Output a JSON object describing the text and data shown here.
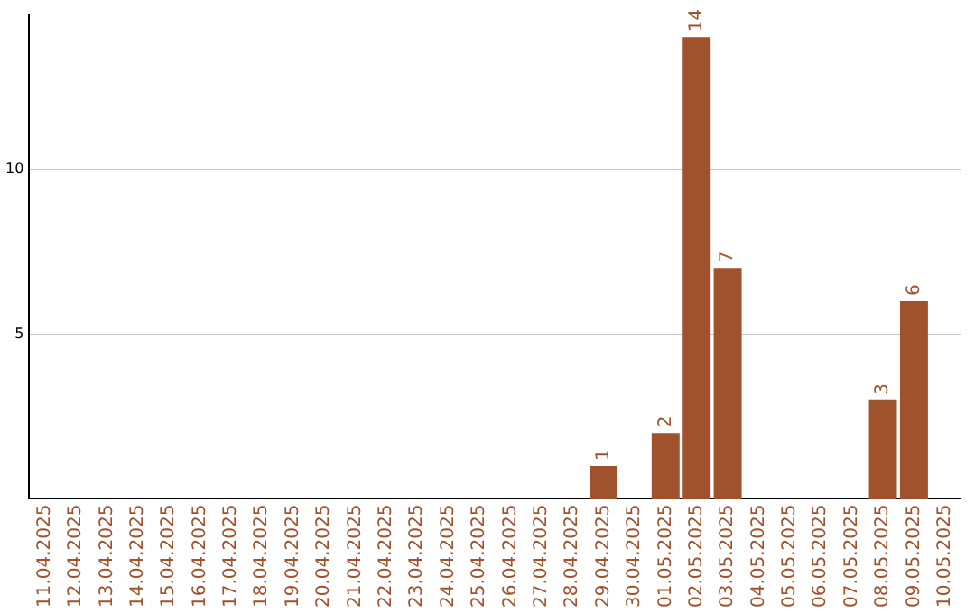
{
  "chart_data": {
    "type": "bar",
    "categories": [
      "11.04.2025",
      "12.04.2025",
      "13.04.2025",
      "14.04.2025",
      "15.04.2025",
      "16.04.2025",
      "17.04.2025",
      "18.04.2025",
      "19.04.2025",
      "20.04.2025",
      "21.04.2025",
      "22.04.2025",
      "23.04.2025",
      "24.04.2025",
      "25.04.2025",
      "26.04.2025",
      "27.04.2025",
      "28.04.2025",
      "29.04.2025",
      "30.04.2025",
      "01.05.2025",
      "02.05.2025",
      "03.05.2025",
      "04.05.2025",
      "05.05.2025",
      "06.05.2025",
      "07.05.2025",
      "08.05.2025",
      "09.05.2025",
      "10.05.2025"
    ],
    "values": [
      null,
      null,
      null,
      null,
      null,
      null,
      null,
      null,
      null,
      null,
      null,
      null,
      null,
      null,
      null,
      null,
      null,
      null,
      1,
      null,
      2,
      14,
      7,
      null,
      null,
      null,
      null,
      3,
      6,
      null
    ],
    "color": "#a0522d",
    "ylim": [
      0,
      14.7
    ],
    "yticks": [
      5,
      10
    ],
    "grid": "y",
    "data_labels": true
  }
}
